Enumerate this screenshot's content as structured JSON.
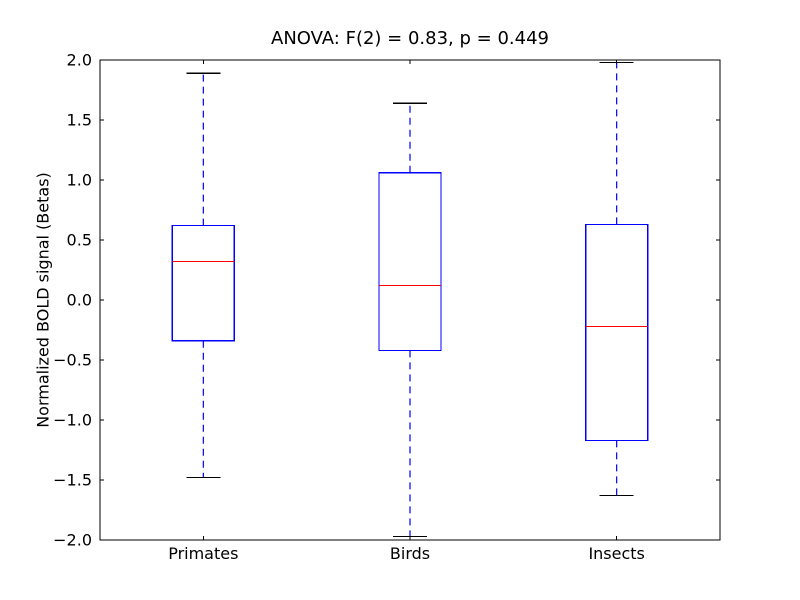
{
  "figure": {
    "title": "ANOVA: F(2) = 0.83, p = 0.449"
  },
  "chart_data": {
    "type": "boxplot",
    "title": "ANOVA: F(2) = 0.83, p = 0.449",
    "xlabel": "",
    "ylabel": "Normalized BOLD signal (Betas)",
    "categories": [
      "Primates",
      "Birds",
      "Insects"
    ],
    "ylim": [
      -2.0,
      2.0
    ],
    "ytick_step": 0.5,
    "ytick_labels": [
      "2.0",
      "1.5",
      "1.0",
      "0.5",
      "0.0",
      "−0.5",
      "−1.0",
      "−1.5",
      "−2.0"
    ],
    "grid": false,
    "legend": null,
    "series": [
      {
        "name": "Primates",
        "whisker_low": -1.48,
        "q1": -0.34,
        "median": 0.32,
        "q3": 0.62,
        "whisker_high": 1.89
      },
      {
        "name": "Birds",
        "whisker_low": -1.97,
        "q1": -0.42,
        "median": 0.12,
        "q3": 1.06,
        "whisker_high": 1.64
      },
      {
        "name": "Insects",
        "whisker_low": -1.63,
        "q1": -1.17,
        "median": -0.22,
        "q3": 0.63,
        "whisker_high": 1.98
      }
    ],
    "colors": {
      "box": "#0000ff",
      "median": "#ff0000",
      "whisker": "#0000ff",
      "cap": "#000000",
      "axis": "#000000",
      "background": "#ffffff",
      "text": "#000000"
    }
  }
}
